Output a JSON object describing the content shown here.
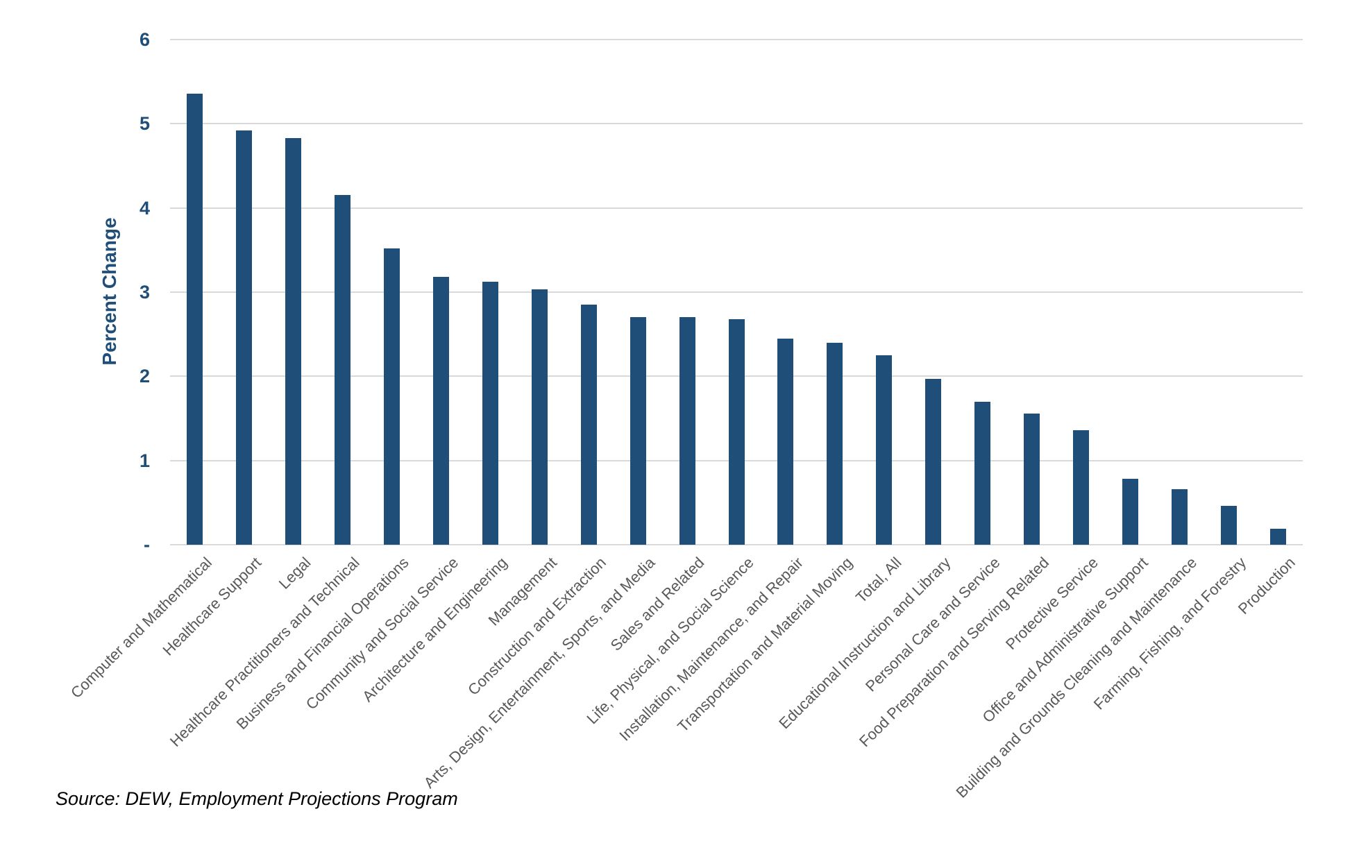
{
  "chart_data": {
    "type": "bar",
    "title": "",
    "xlabel": "",
    "ylabel": "Percent Change",
    "ylim": [
      0,
      6
    ],
    "grid": true,
    "legend": false,
    "bar_color": "#1F4E79",
    "gridline_color": "#D9D9D9",
    "category_label_color": "#595959",
    "axis_label_color": "#1F4E79",
    "ytick_values": [
      0,
      1,
      2,
      3,
      4,
      5,
      6
    ],
    "ytick_labels": [
      "-",
      "1",
      "2",
      "3",
      "4",
      "5",
      "6"
    ],
    "categories": [
      "Computer and Mathematical",
      "Healthcare Support",
      "Legal",
      "Healthcare Practitioners and Technical",
      "Business and Financial Operations",
      "Community and Social Service",
      "Architecture and Engineering",
      "Management",
      "Construction and Extraction",
      "Arts, Design, Entertainment, Sports, and Media",
      "Sales and Related",
      "Life, Physical, and Social Science",
      "Installation, Maintenance, and Repair",
      "Transportation and Material Moving",
      "Total, All",
      "Educational Instruction and Library",
      "Personal Care and Service",
      "Food Preparation and Serving Related",
      "Protective Service",
      "Office and Administrative Support",
      "Building and Grounds Cleaning and Maintenance",
      "Farming, Fishing, and Forestry",
      "Production"
    ],
    "values": [
      5.36,
      4.92,
      4.83,
      4.15,
      3.52,
      3.18,
      3.12,
      3.03,
      2.85,
      2.7,
      2.7,
      2.68,
      2.45,
      2.4,
      2.25,
      1.97,
      1.7,
      1.56,
      1.36,
      0.78,
      0.66,
      0.46,
      0.19
    ]
  },
  "source_note": "Source: DEW, Employment Projections Program"
}
